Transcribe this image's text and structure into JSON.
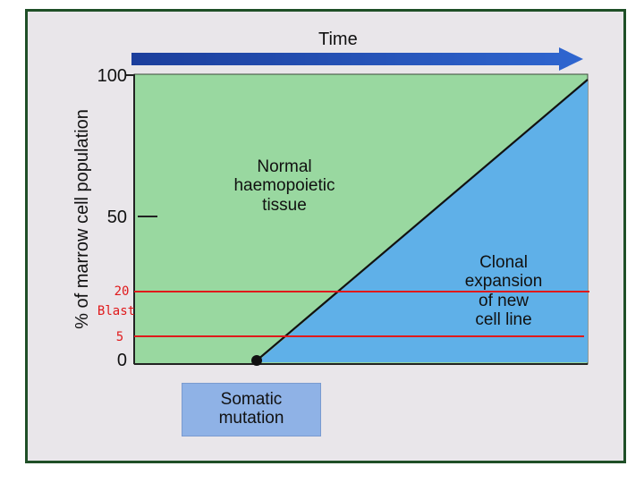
{
  "time_label": "Time",
  "y_axis_label": "% of marrow cell population",
  "ticks": {
    "t100": "100",
    "t50": "50",
    "t0": "0"
  },
  "regions": {
    "normal": [
      "Normal",
      "haemopoietic",
      "tissue"
    ],
    "clonal": [
      "Clonal",
      "expansion",
      "of new",
      "cell line"
    ]
  },
  "threshold_lines": {
    "upper_value": "20",
    "upper_label": "Blast",
    "lower_value": "5"
  },
  "somatic_box": [
    "Somatic",
    "mutation"
  ],
  "colors": {
    "normal_fill": "#99d8a0",
    "clonal_fill": "#5fb0e8",
    "arrow": "#2452b8",
    "threshold_line": "#e0191b",
    "somatic_box": "#8fb2e6",
    "frame_border": "#1f4f27"
  }
}
